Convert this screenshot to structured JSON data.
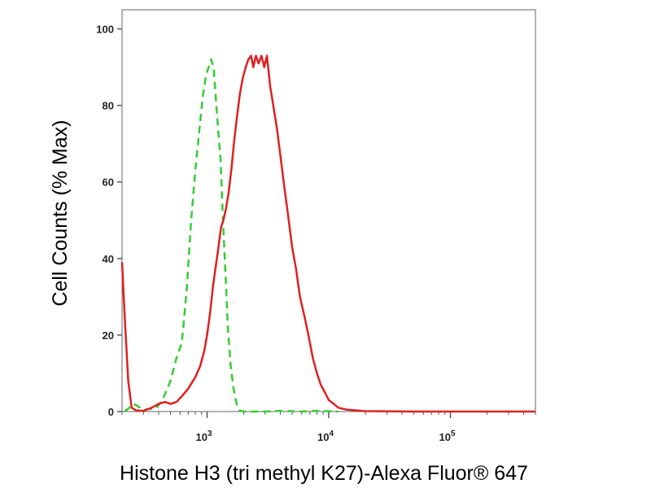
{
  "chart_data": {
    "type": "line",
    "title": "",
    "xlabel": "Histone H3 (tri methyl K27)-Alexa Fluor® 647",
    "ylabel": "Cell Counts (% Max)",
    "xscale": "log",
    "xlim": [
      200,
      500000
    ],
    "ylim": [
      0,
      105
    ],
    "grid": false,
    "legend": "none",
    "y_ticks": [
      {
        "value": 0,
        "label": "0"
      },
      {
        "value": 20,
        "label": "20"
      },
      {
        "value": 40,
        "label": "40"
      },
      {
        "value": 60,
        "label": "60"
      },
      {
        "value": 80,
        "label": "80"
      },
      {
        "value": 100,
        "label": "100"
      }
    ],
    "x_ticks": [
      {
        "value": 1000,
        "base": "10",
        "exp": "3"
      },
      {
        "value": 10000,
        "base": "10",
        "exp": "4"
      },
      {
        "value": 100000,
        "base": "10",
        "exp": "5"
      }
    ],
    "series": [
      {
        "style": "dashed",
        "color": "#33cc33",
        "points": [
          [
            210,
            0
          ],
          [
            250,
            2
          ],
          [
            300,
            0.5
          ],
          [
            380,
            0.8
          ],
          [
            430,
            3
          ],
          [
            500,
            8
          ],
          [
            560,
            14
          ],
          [
            620,
            18
          ],
          [
            680,
            32
          ],
          [
            740,
            50
          ],
          [
            800,
            63
          ],
          [
            860,
            73
          ],
          [
            920,
            82
          ],
          [
            980,
            88
          ],
          [
            1030,
            90
          ],
          [
            1080,
            92
          ],
          [
            1130,
            90
          ],
          [
            1180,
            82
          ],
          [
            1230,
            74
          ],
          [
            1290,
            66
          ],
          [
            1350,
            50
          ],
          [
            1420,
            35
          ],
          [
            1480,
            22
          ],
          [
            1560,
            12
          ],
          [
            1650,
            6
          ],
          [
            1750,
            2
          ],
          [
            1850,
            0.3
          ],
          [
            2000,
            0
          ],
          [
            3000,
            0
          ],
          [
            4000,
            0.2
          ],
          [
            6000,
            0
          ],
          [
            8000,
            0.2
          ],
          [
            12000,
            0
          ]
        ]
      },
      {
        "style": "solid",
        "color": "#e02020",
        "points": [
          [
            200,
            39
          ],
          [
            210,
            25
          ],
          [
            225,
            8
          ],
          [
            240,
            1
          ],
          [
            260,
            0.3
          ],
          [
            300,
            0.2
          ],
          [
            350,
            1
          ],
          [
            400,
            2
          ],
          [
            450,
            2.5
          ],
          [
            500,
            2
          ],
          [
            560,
            2.5
          ],
          [
            620,
            4
          ],
          [
            700,
            6
          ],
          [
            800,
            9
          ],
          [
            880,
            12
          ],
          [
            950,
            16
          ],
          [
            1000,
            20
          ],
          [
            1060,
            26
          ],
          [
            1120,
            33
          ],
          [
            1180,
            38
          ],
          [
            1240,
            43
          ],
          [
            1300,
            48
          ],
          [
            1360,
            50
          ],
          [
            1430,
            53
          ],
          [
            1500,
            57
          ],
          [
            1580,
            63
          ],
          [
            1660,
            70
          ],
          [
            1760,
            77
          ],
          [
            1860,
            83
          ],
          [
            1960,
            87
          ],
          [
            2080,
            90
          ],
          [
            2180,
            92
          ],
          [
            2300,
            93
          ],
          [
            2400,
            90
          ],
          [
            2520,
            93
          ],
          [
            2650,
            91
          ],
          [
            2800,
            93
          ],
          [
            2950,
            90
          ],
          [
            3100,
            93
          ],
          [
            3300,
            85
          ],
          [
            3500,
            80
          ],
          [
            3750,
            74
          ],
          [
            4000,
            67
          ],
          [
            4300,
            59
          ],
          [
            4600,
            52
          ],
          [
            5000,
            43
          ],
          [
            5400,
            37
          ],
          [
            5800,
            30
          ],
          [
            6300,
            25
          ],
          [
            6800,
            20
          ],
          [
            7400,
            14
          ],
          [
            8000,
            10
          ],
          [
            8600,
            7
          ],
          [
            9300,
            5
          ],
          [
            10000,
            3
          ],
          [
            11000,
            2
          ],
          [
            12000,
            1
          ],
          [
            14000,
            0.5
          ],
          [
            20000,
            0.1
          ],
          [
            50000,
            0
          ],
          [
            200000,
            0
          ],
          [
            500000,
            0
          ]
        ]
      }
    ]
  }
}
